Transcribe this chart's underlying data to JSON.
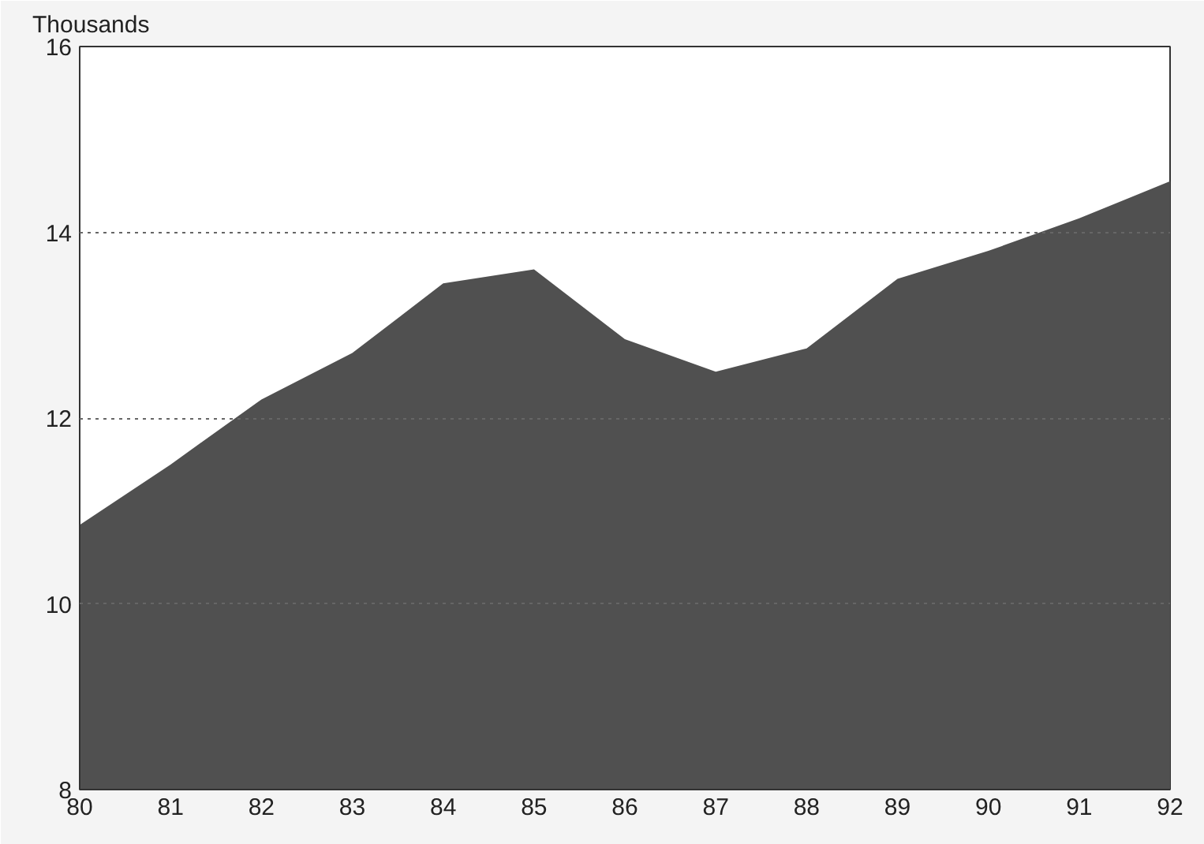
{
  "chart_data": {
    "type": "area",
    "ylabel": "Thousands",
    "x": [
      80,
      81,
      82,
      83,
      84,
      85,
      86,
      87,
      88,
      89,
      90,
      91,
      92
    ],
    "series": [
      {
        "color": "#505050",
        "values": [
          10.85,
          11.5,
          12.2,
          12.7,
          13.45,
          13.6,
          12.85,
          12.5,
          12.75,
          13.5,
          13.8,
          14.15,
          14.55
        ]
      }
    ],
    "xlim": [
      80,
      92
    ],
    "ylim": [
      8,
      16
    ],
    "xticks": [
      80,
      81,
      82,
      83,
      84,
      85,
      86,
      87,
      88,
      89,
      90,
      91,
      92
    ],
    "yticks": [
      8,
      10,
      12,
      14,
      16
    ],
    "grid": "y",
    "line_style": "dotted"
  }
}
